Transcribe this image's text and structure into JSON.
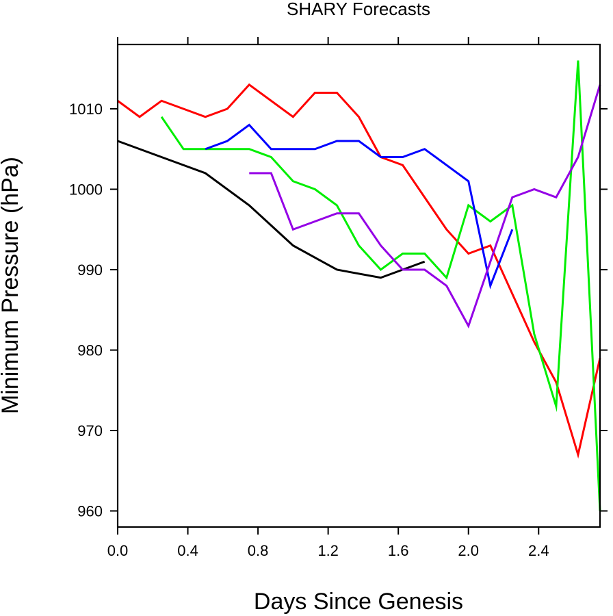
{
  "chart_data": {
    "type": "line",
    "title": "SHARY Forecasts",
    "xlabel": "Days Since Genesis",
    "ylabel": "Minimum Pressure (hPa)",
    "xlim": [
      0,
      2.75
    ],
    "ylim": [
      958,
      1018
    ],
    "x_ticks": [
      0.0,
      0.4,
      0.8,
      1.2,
      1.6,
      2.0,
      2.4
    ],
    "x_tick_labels": [
      "0.0",
      "0.4",
      "0.8",
      "1.2",
      "1.6",
      "2.0",
      "2.4"
    ],
    "y_ticks": [
      960,
      970,
      980,
      990,
      1000,
      1010
    ],
    "y_tick_labels": [
      "960",
      "970",
      "980",
      "990",
      "1000",
      "1010"
    ],
    "grid": false,
    "series": [
      {
        "color": "#000000",
        "points": [
          [
            0.0,
            1006
          ],
          [
            0.5,
            1002
          ],
          [
            0.75,
            998
          ],
          [
            1.0,
            993
          ],
          [
            1.25,
            990
          ],
          [
            1.5,
            989
          ],
          [
            1.75,
            991
          ]
        ]
      },
      {
        "color": "#ff0000",
        "points": [
          [
            0.0,
            1011
          ],
          [
            0.125,
            1009
          ],
          [
            0.25,
            1011
          ],
          [
            0.5,
            1009
          ],
          [
            0.625,
            1010
          ],
          [
            0.75,
            1013
          ],
          [
            1.0,
            1009
          ],
          [
            1.125,
            1012
          ],
          [
            1.25,
            1012
          ],
          [
            1.375,
            1009
          ],
          [
            1.5,
            1004
          ],
          [
            1.625,
            1003
          ],
          [
            1.875,
            995
          ],
          [
            2.0,
            992
          ],
          [
            2.125,
            993
          ],
          [
            2.375,
            981
          ],
          [
            2.5,
            976
          ],
          [
            2.625,
            967
          ],
          [
            2.75,
            979
          ]
        ]
      },
      {
        "color": "#00ee00",
        "points": [
          [
            0.25,
            1009
          ],
          [
            0.375,
            1005
          ],
          [
            0.75,
            1005
          ],
          [
            0.875,
            1004
          ],
          [
            1.0,
            1001
          ],
          [
            1.125,
            1000
          ],
          [
            1.25,
            998
          ],
          [
            1.375,
            993
          ],
          [
            1.5,
            990
          ],
          [
            1.625,
            992
          ],
          [
            1.75,
            992
          ],
          [
            1.875,
            989
          ],
          [
            2.0,
            998
          ],
          [
            2.125,
            996
          ],
          [
            2.25,
            998
          ],
          [
            2.375,
            982
          ],
          [
            2.5,
            973
          ],
          [
            2.625,
            1016
          ],
          [
            2.75,
            960
          ]
        ]
      },
      {
        "color": "#0000ff",
        "points": [
          [
            0.5,
            1005
          ],
          [
            0.625,
            1006
          ],
          [
            0.75,
            1008
          ],
          [
            0.875,
            1005
          ],
          [
            1.125,
            1005
          ],
          [
            1.25,
            1006
          ],
          [
            1.375,
            1006
          ],
          [
            1.5,
            1004
          ],
          [
            1.625,
            1004
          ],
          [
            1.75,
            1005
          ],
          [
            2.0,
            1001
          ],
          [
            2.125,
            988
          ],
          [
            2.25,
            995
          ]
        ]
      },
      {
        "color": "#9400e6",
        "points": [
          [
            0.75,
            1002
          ],
          [
            0.875,
            1002
          ],
          [
            1.0,
            995
          ],
          [
            1.25,
            997
          ],
          [
            1.375,
            997
          ],
          [
            1.5,
            993
          ],
          [
            1.625,
            990
          ],
          [
            1.75,
            990
          ],
          [
            1.875,
            988
          ],
          [
            2.0,
            983
          ],
          [
            2.25,
            999
          ],
          [
            2.375,
            1000
          ],
          [
            2.5,
            999
          ],
          [
            2.625,
            1004
          ],
          [
            2.75,
            1013
          ]
        ]
      }
    ]
  }
}
